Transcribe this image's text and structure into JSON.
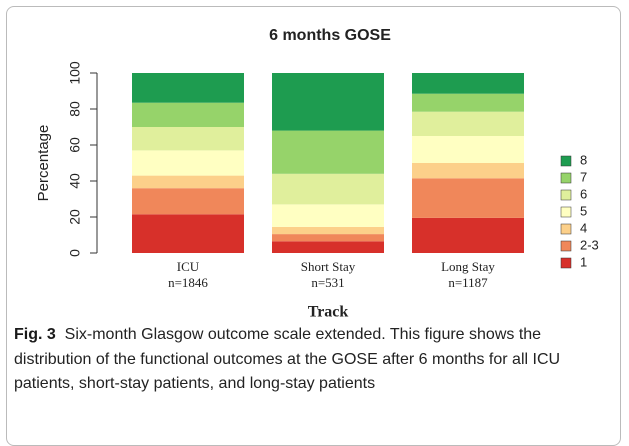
{
  "chart_data": {
    "type": "stacked-bar",
    "title": "6 months GOSE",
    "y_label": "Percentage",
    "x_label": "Track",
    "categories": [
      "ICU",
      "Short Stay",
      "Long Stay"
    ],
    "n_labels": [
      "n=1846",
      "n=531",
      "n=1187"
    ],
    "ylim": [
      0,
      100
    ],
    "yticks": [
      0,
      20,
      40,
      60,
      80,
      100
    ],
    "series": [
      {
        "name": "1",
        "color": "#d7302a",
        "values": [
          21.5,
          6.5,
          19.5
        ]
      },
      {
        "name": "2-3",
        "color": "#f0875a",
        "values": [
          14.5,
          4,
          22
        ]
      },
      {
        "name": "4",
        "color": "#fcd08a",
        "values": [
          7,
          4,
          8.5
        ]
      },
      {
        "name": "5",
        "color": "#ffffc2",
        "values": [
          14,
          12.5,
          15
        ]
      },
      {
        "name": "6",
        "color": "#e0ef9c",
        "values": [
          13,
          17,
          13.5
        ]
      },
      {
        "name": "7",
        "color": "#96d36a",
        "values": [
          13.5,
          24,
          10
        ]
      },
      {
        "name": "8",
        "color": "#1e9c50",
        "values": [
          16.5,
          32,
          11.5
        ]
      }
    ]
  },
  "caption": {
    "label": "Fig. 3",
    "text": "Six-month Glasgow outcome scale extended. This figure shows the distribution of the functional outcomes at the GOSE after 6 months for all ICU patients, short-stay patients, and long-stay patients"
  }
}
